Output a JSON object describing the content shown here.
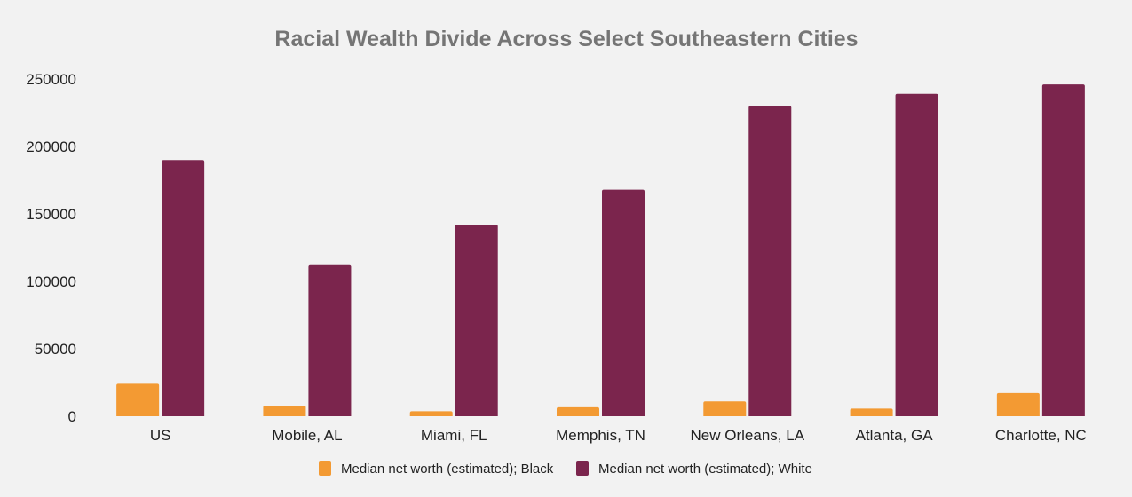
{
  "chart_data": {
    "type": "bar",
    "title": "Racial Wealth Divide Across Select Southeastern Cities",
    "xlabel": "",
    "ylabel": "",
    "categories": [
      "US",
      "Mobile, AL",
      "Miami, FL",
      "Memphis, TN",
      "New Orleans, LA",
      "Atlanta, GA",
      "Charlotte, NC"
    ],
    "series": [
      {
        "name": "Median net worth (estimated); Black",
        "color": "#f39a33",
        "values": [
          24100,
          7900,
          3700,
          6700,
          11000,
          5700,
          17200
        ]
      },
      {
        "name": "Median net worth (estimated); White",
        "color": "#7b254d",
        "values": [
          190000,
          112000,
          142000,
          168000,
          230000,
          239000,
          246000
        ]
      }
    ],
    "ylim": [
      0,
      250000
    ],
    "yticks": [
      "0",
      "50000",
      "100000",
      "150000",
      "200000",
      "250000"
    ],
    "grid": false,
    "legend_position": "bottom"
  }
}
